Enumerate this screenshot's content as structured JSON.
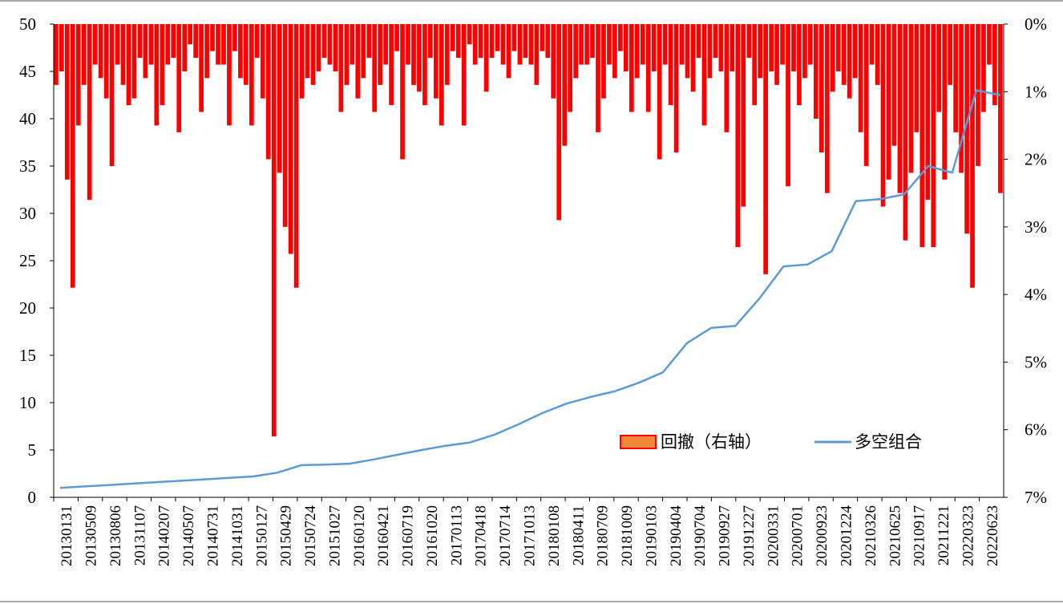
{
  "chart_data": {
    "type": "bar+line",
    "title": "",
    "left_axis": {
      "ylim": [
        0,
        50
      ],
      "ticks": [
        "0",
        "5",
        "10",
        "15",
        "20",
        "25",
        "30",
        "35",
        "40",
        "45",
        "50"
      ]
    },
    "right_axis": {
      "ylim_pct": [
        0,
        7
      ],
      "inverted": true,
      "ticks": [
        "0%",
        "1%",
        "2%",
        "3%",
        "4%",
        "5%",
        "6%",
        "7%"
      ]
    },
    "x_ticks": [
      "20130131",
      "20130509",
      "20130806",
      "20131107",
      "20140207",
      "20140507",
      "20140731",
      "20141031",
      "20150127",
      "20150429",
      "20150724",
      "20151027",
      "20160120",
      "20160421",
      "20160719",
      "20161020",
      "20170113",
      "20170418",
      "20170714",
      "20171013",
      "20180108",
      "20180411",
      "20180709",
      "20181009",
      "20190103",
      "20190404",
      "20190704",
      "20190927",
      "20191227",
      "20200331",
      "20200701",
      "20200923",
      "20201224",
      "20210326",
      "20210625",
      "20210917",
      "20211221",
      "20220323",
      "20220623"
    ],
    "legend": {
      "placement": "bottom-right",
      "entries": [
        "回撤（右轴）",
        "多空组合"
      ]
    },
    "colors": {
      "drawdown_bar": "#ff0000",
      "legend_bar_fill": "#f0883a",
      "legend_bar_edge": "#ff0000",
      "line": "#5b9bd5"
    },
    "series": [
      {
        "name": "多空组合",
        "axis": "left",
        "kind": "line",
        "values": [
          1.0,
          1.15,
          1.3,
          1.45,
          1.6,
          1.75,
          1.9,
          2.05,
          2.2,
          2.6,
          3.4,
          3.45,
          3.55,
          4.0,
          4.5,
          5.0,
          5.45,
          5.8,
          6.6,
          7.7,
          8.9,
          9.9,
          10.6,
          11.2,
          12.1,
          13.2,
          16.3,
          17.9,
          18.1,
          21.0,
          24.4,
          24.6,
          26.0,
          31.3,
          31.5,
          32.0,
          35.0,
          34.3,
          43.0,
          42.5
        ]
      },
      {
        "name": "回撤（右轴）",
        "axis": "right",
        "kind": "bar",
        "unit": "%",
        "values": [
          0.9,
          0.7,
          2.3,
          3.9,
          1.5,
          0.9,
          2.6,
          0.6,
          0.8,
          1.1,
          2.1,
          0.6,
          0.9,
          1.2,
          1.1,
          0.5,
          0.8,
          0.6,
          1.5,
          1.2,
          0.6,
          0.5,
          1.6,
          0.7,
          0.3,
          0.5,
          1.3,
          0.8,
          0.4,
          0.6,
          0.6,
          1.5,
          0.4,
          0.8,
          0.9,
          1.5,
          0.5,
          1.1,
          2.0,
          6.1,
          2.2,
          3.0,
          3.4,
          3.9,
          1.1,
          0.8,
          0.9,
          0.7,
          0.5,
          0.6,
          0.7,
          1.3,
          0.9,
          0.6,
          1.1,
          0.8,
          0.5,
          1.3,
          0.9,
          0.6,
          1.2,
          0.4,
          2.0,
          0.6,
          0.9,
          1.0,
          1.2,
          0.5,
          1.1,
          1.5,
          0.9,
          0.4,
          0.5,
          1.5,
          0.3,
          0.6,
          0.5,
          1.0,
          0.5,
          0.4,
          0.6,
          0.8,
          0.4,
          0.6,
          0.5,
          0.6,
          0.9,
          0.4,
          0.5,
          1.1,
          2.9,
          1.8,
          1.3,
          0.8,
          0.6,
          0.6,
          0.5,
          1.6,
          1.1,
          0.6,
          0.8,
          0.4,
          0.7,
          1.3,
          0.8,
          0.6,
          1.3,
          0.7,
          2.0,
          0.6,
          1.2,
          1.9,
          0.6,
          0.8,
          1.0,
          0.5,
          1.5,
          0.8,
          0.5,
          0.7,
          1.6,
          0.7,
          3.3,
          2.7,
          0.5,
          1.2,
          0.8,
          3.7,
          0.7,
          0.9,
          0.6,
          2.4,
          0.7,
          1.2,
          0.8,
          0.6,
          1.4,
          1.9,
          2.5,
          1.0,
          0.7,
          0.9,
          1.1,
          0.8,
          1.6,
          2.1,
          0.6,
          0.9,
          2.7,
          2.3,
          1.8,
          2.5,
          3.2,
          2.2,
          1.6,
          3.3,
          2.6,
          3.3,
          1.3,
          2.3,
          0.9,
          1.6,
          2.2,
          3.1,
          3.9,
          2.1,
          1.3,
          0.6,
          1.2,
          2.5
        ]
      }
    ]
  }
}
